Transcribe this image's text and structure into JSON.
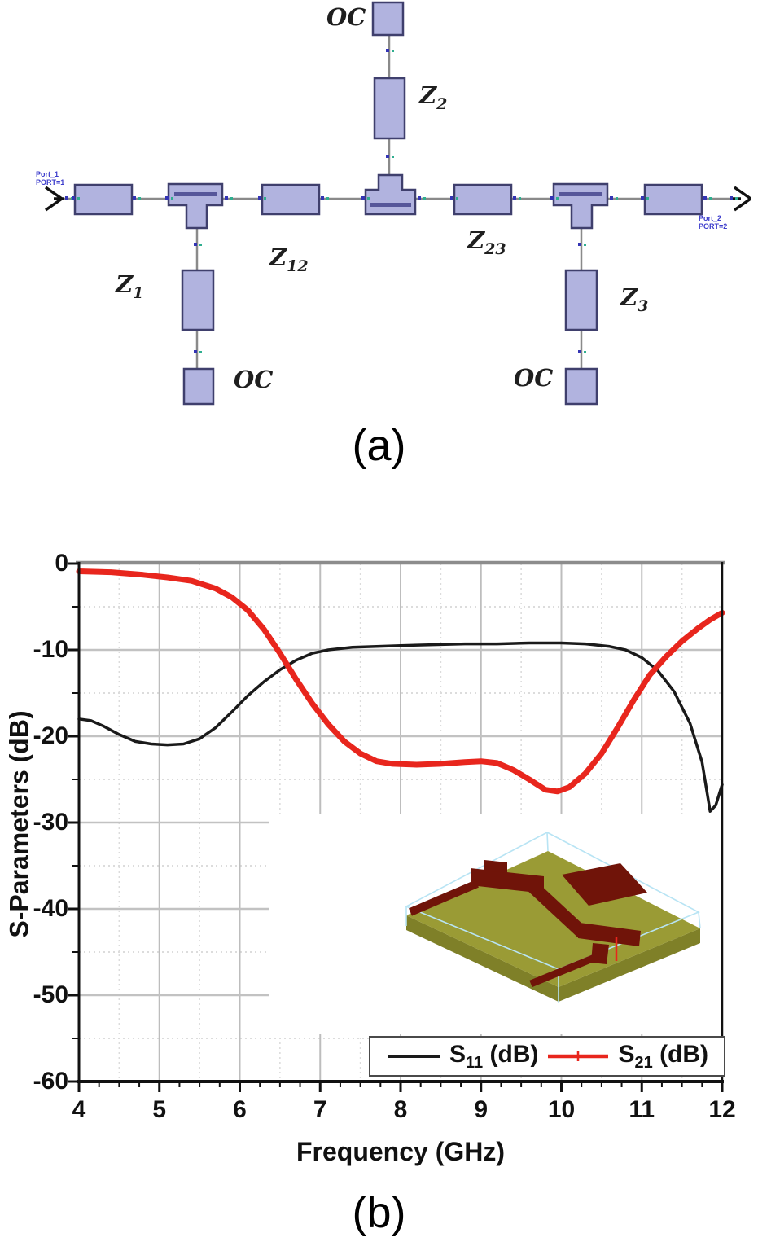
{
  "figure": {
    "caption_a": "(a)",
    "caption_b": "(b)"
  },
  "schematic": {
    "port1": {
      "line1": "Port_1",
      "line2": "PORT=1"
    },
    "port2": {
      "line1": "Port_2",
      "line2": "PORT=2"
    },
    "oc_top": "OC",
    "oc_bottom_left": "OC",
    "oc_bottom_right": "OC",
    "z1": {
      "base": "Z",
      "sub": "1"
    },
    "z2": {
      "base": "Z",
      "sub": "2"
    },
    "z3": {
      "base": "Z",
      "sub": "3"
    },
    "z12": {
      "base": "Z",
      "sub": "12"
    },
    "z23": {
      "base": "Z",
      "sub": "23"
    },
    "colors": {
      "component_fill": "#b1b3df",
      "component_border": "#3f3f6d",
      "wire": "#8a8a8a",
      "port_text": "#3c3ccc"
    }
  },
  "chart": {
    "legend": {
      "s11": {
        "base": "S",
        "sub": "11",
        "unit": "(dB)"
      },
      "s21": {
        "base": "S",
        "sub": "21",
        "unit": "(dB)"
      }
    },
    "inset": {
      "description": "3D EM model of microstrip trisection filter",
      "substrate_color": "#9a9b35",
      "trace_color": "#701409",
      "wireframe_color": "#b8e4f4"
    }
  },
  "chart_data": {
    "type": "line",
    "title": "",
    "xlabel": "Frequency (GHz)",
    "ylabel": "S-Parameters (dB)",
    "xlim": [
      4,
      12
    ],
    "ylim": [
      -60,
      0
    ],
    "x_ticks": [
      4,
      5,
      6,
      7,
      8,
      9,
      10,
      11,
      12
    ],
    "y_ticks": [
      0,
      -10,
      -20,
      -30,
      -40,
      -50,
      -60
    ],
    "x_minor_tick_step": 0.25,
    "x_minor_grid_step": 0.5,
    "y_minor_step": 5,
    "grid": true,
    "legend_position": "bottom-right",
    "series": [
      {
        "name": "S11 (dB)",
        "color": "#1a1a1a",
        "width": 3.5,
        "points": [
          [
            4,
            -18
          ],
          [
            4.15,
            -18.2
          ],
          [
            4.3,
            -18.8
          ],
          [
            4.5,
            -19.8
          ],
          [
            4.7,
            -20.6
          ],
          [
            4.9,
            -20.9
          ],
          [
            5.1,
            -21
          ],
          [
            5.3,
            -20.9
          ],
          [
            5.5,
            -20.3
          ],
          [
            5.7,
            -19
          ],
          [
            5.9,
            -17.2
          ],
          [
            6.1,
            -15.3
          ],
          [
            6.3,
            -13.7
          ],
          [
            6.5,
            -12.3
          ],
          [
            6.7,
            -11.2
          ],
          [
            6.9,
            -10.4
          ],
          [
            7.1,
            -10
          ],
          [
            7.4,
            -9.7
          ],
          [
            7.7,
            -9.6
          ],
          [
            8,
            -9.5
          ],
          [
            8.4,
            -9.4
          ],
          [
            8.8,
            -9.3
          ],
          [
            9.2,
            -9.3
          ],
          [
            9.6,
            -9.2
          ],
          [
            10,
            -9.2
          ],
          [
            10.3,
            -9.3
          ],
          [
            10.6,
            -9.6
          ],
          [
            10.8,
            -10
          ],
          [
            11,
            -10.9
          ],
          [
            11.2,
            -12.4
          ],
          [
            11.4,
            -14.8
          ],
          [
            11.6,
            -18.5
          ],
          [
            11.75,
            -23
          ],
          [
            11.85,
            -28.7
          ],
          [
            11.92,
            -28
          ],
          [
            12,
            -25.6
          ]
        ]
      },
      {
        "name": "S21 (dB)",
        "color": "#e8261d",
        "width": 7,
        "points": [
          [
            4,
            -0.9
          ],
          [
            4.4,
            -1
          ],
          [
            4.8,
            -1.3
          ],
          [
            5.1,
            -1.6
          ],
          [
            5.4,
            -2
          ],
          [
            5.7,
            -2.9
          ],
          [
            5.9,
            -3.9
          ],
          [
            6.1,
            -5.4
          ],
          [
            6.3,
            -7.6
          ],
          [
            6.5,
            -10.4
          ],
          [
            6.7,
            -13.4
          ],
          [
            6.9,
            -16.2
          ],
          [
            7.1,
            -18.6
          ],
          [
            7.3,
            -20.6
          ],
          [
            7.5,
            -22
          ],
          [
            7.7,
            -22.9
          ],
          [
            7.9,
            -23.2
          ],
          [
            8.2,
            -23.3
          ],
          [
            8.5,
            -23.2
          ],
          [
            8.8,
            -23
          ],
          [
            9,
            -22.9
          ],
          [
            9.2,
            -23.1
          ],
          [
            9.4,
            -23.9
          ],
          [
            9.6,
            -25
          ],
          [
            9.8,
            -26.2
          ],
          [
            9.95,
            -26.4
          ],
          [
            10.1,
            -25.9
          ],
          [
            10.3,
            -24.3
          ],
          [
            10.5,
            -22
          ],
          [
            10.7,
            -19
          ],
          [
            10.9,
            -15.8
          ],
          [
            11.1,
            -12.9
          ],
          [
            11.3,
            -10.8
          ],
          [
            11.5,
            -9
          ],
          [
            11.7,
            -7.5
          ],
          [
            11.85,
            -6.5
          ],
          [
            12,
            -5.7
          ]
        ]
      }
    ]
  }
}
